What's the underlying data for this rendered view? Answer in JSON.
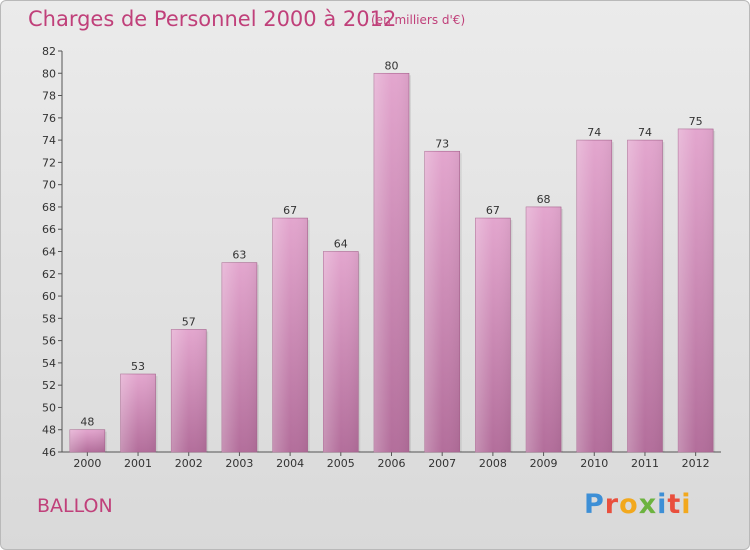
{
  "chart_data": {
    "type": "bar",
    "title": "Charges de Personnel 2000 à 2012",
    "subtitle": "(en milliers d'€)",
    "categories": [
      "2000",
      "2001",
      "2002",
      "2003",
      "2004",
      "2005",
      "2006",
      "2007",
      "2008",
      "2009",
      "2010",
      "2011",
      "2012"
    ],
    "values": [
      48,
      53,
      57,
      63,
      67,
      64,
      80,
      73,
      67,
      68,
      74,
      74,
      75
    ],
    "ylim": [
      46,
      82
    ],
    "ytick_step": 2,
    "grid": false,
    "bar_color": "#d98fbc",
    "text_color": "#c0407a"
  },
  "footer": {
    "commune": "BALLON",
    "logo": [
      "P",
      "r",
      "o",
      "x",
      "i",
      "t",
      "i"
    ]
  }
}
